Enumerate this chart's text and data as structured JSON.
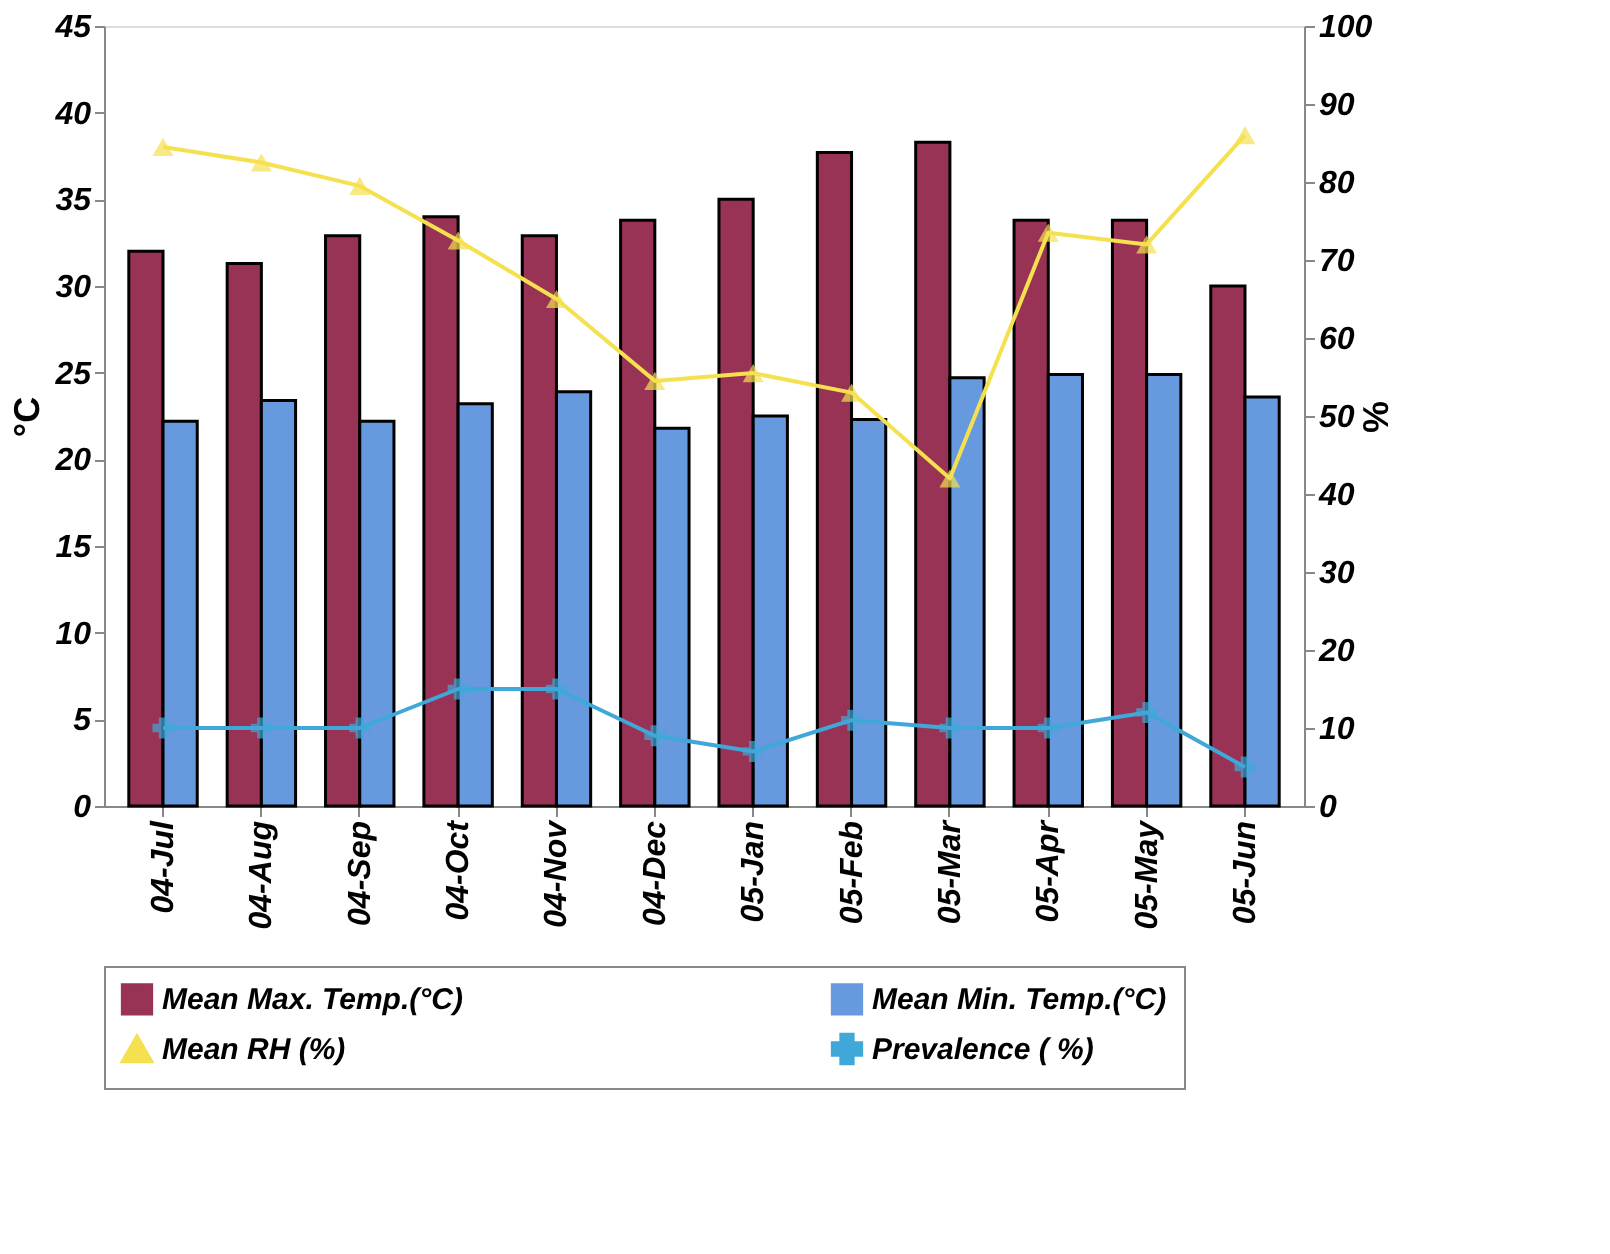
{
  "chart_data": {
    "type": "bar",
    "ylabel": "°C",
    "y2label": "%",
    "categories": [
      "04-Jul",
      "04-Aug",
      "04-Sep",
      "04-Oct",
      "04-Nov",
      "04-Dec",
      "05-Jan",
      "05-Feb",
      "05-Mar",
      "05-Apr",
      "05-May",
      "05-Jun"
    ],
    "series": [
      {
        "name": "Mean Max. Temp.(°C)",
        "color": "#993355",
        "values": [
          32,
          31.3,
          32.9,
          34,
          32.9,
          33.8,
          35,
          37.7,
          38.3,
          33.8,
          33.8,
          30
        ]
      },
      {
        "name": "Mean Min. Temp.(°C)",
        "color": "#6699dd",
        "values": [
          22.2,
          23.4,
          22.2,
          23.2,
          23.9,
          21.8,
          22.5,
          22.3,
          24.7,
          24.9,
          24.9,
          23.6
        ]
      },
      {
        "name": "Mean RH (%)",
        "type": "line",
        "axis": "y2",
        "marker": "triangle",
        "color": "#f5e050",
        "values": [
          84.5,
          82.5,
          79.5,
          72.5,
          65,
          54.5,
          55.5,
          53,
          42,
          73.5,
          72,
          86
        ]
      },
      {
        "name": "Prevalence ( %)",
        "type": "line",
        "axis": "y2",
        "marker": "cross",
        "color": "#40a8d8",
        "values": [
          10,
          10,
          10,
          15,
          15,
          9,
          7,
          11,
          10,
          10,
          12,
          5
        ]
      }
    ],
    "ylim": [
      0,
      45
    ],
    "yticks": [
      0,
      5,
      10,
      15,
      20,
      25,
      30,
      35,
      40,
      45
    ],
    "y2lim": [
      0,
      100
    ],
    "y2ticks": [
      0,
      10,
      20,
      30,
      40,
      50,
      60,
      70,
      80,
      90,
      100
    ],
    "grid": false,
    "legend": "bottom"
  }
}
